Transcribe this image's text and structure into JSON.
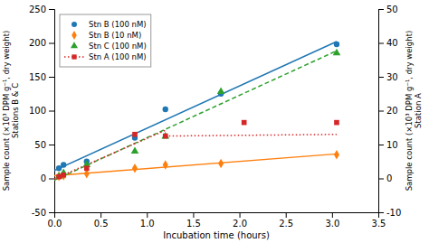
{
  "chart_data": {
    "type": "scatter",
    "x_label": "Incubation time (hours)",
    "y_label": "Sample count (×10³ DPM g⁻¹, dry weight)\nStations B & C",
    "y2_label": "Sample count (×10³ DPM g⁻¹, dry weight)\nStation A",
    "xlim": [
      0,
      3.5
    ],
    "xticks": [
      {
        "value": 0,
        "label": "0.0"
      },
      0.5,
      {
        "value": 1,
        "label": "1.0"
      },
      1.5,
      {
        "value": 2,
        "label": "2.0"
      },
      2.5,
      {
        "value": 3,
        "label": "3.0"
      },
      3.5
    ],
    "ylim": [
      -50,
      250
    ],
    "yticks": [
      -50,
      0,
      50,
      100,
      150,
      200,
      250
    ],
    "y2lim": [
      -10,
      50
    ],
    "y2ticks": [
      -10,
      0,
      10,
      20,
      30,
      40,
      50
    ],
    "grid": false,
    "legend": "upper left",
    "series": [
      {
        "name": "Stn B (100 nM)",
        "type": "scatter",
        "marker": "circle",
        "color": "#1f77b4",
        "x": [
          0.05,
          0.1,
          0.35,
          0.87,
          1.2,
          1.8,
          3.05
        ],
        "values": [
          15,
          20,
          25,
          60,
          102,
          125,
          198
        ]
      },
      {
        "name": "Stn B (10 nM)",
        "type": "scatter",
        "marker": "diamond",
        "color": "#ff7f0e",
        "x": [
          0.05,
          0.1,
          0.35,
          0.87,
          1.2,
          1.8,
          3.05
        ],
        "values": [
          3,
          4,
          7,
          15,
          20,
          22,
          35
        ]
      },
      {
        "name": "Stn C (100 nM)",
        "type": "scatter",
        "marker": "triangle",
        "color": "#2ca02c",
        "x": [
          0.05,
          0.1,
          0.35,
          0.87,
          1.2,
          1.8,
          3.05
        ],
        "values": [
          3,
          8,
          20,
          40,
          62,
          128,
          185
        ]
      },
      {
        "name": "Stn A (100 nM)",
        "type": "scatter",
        "marker": "square",
        "line_style": "dotted",
        "color": "#d62728",
        "axis": "y2",
        "x": [
          0.05,
          0.1,
          0.35,
          0.87,
          1.2,
          2.05,
          3.05
        ],
        "values": [
          0.5,
          1.0,
          3.0,
          13.0,
          12.5,
          16.5,
          16.5
        ]
      },
      {
        "type": "line",
        "line_style": "solid",
        "color": "#1f77b4",
        "x": [
          0,
          3.05
        ],
        "values": [
          11.724,
          202.012
        ]
      },
      {
        "type": "line",
        "line_style": "dashed",
        "color": "#2ca02c",
        "x": [
          0,
          3.05
        ],
        "values": [
          -2.682,
          188.363
        ]
      },
      {
        "type": "line",
        "line_style": "solid",
        "color": "#ff7f0e",
        "x": [
          0,
          3.05
        ],
        "values": [
          3.946,
          36.164
        ]
      },
      {
        "type": "line",
        "line_style": "dotted",
        "color": "#d62728",
        "axis": "y2",
        "x": [
          0,
          1.2
        ],
        "values": [
          -0.134,
          14.187
        ]
      },
      {
        "type": "line",
        "line_style": "dotted",
        "color": "#d62728",
        "axis": "y2",
        "x": [
          1.2,
          3.05
        ],
        "values": [
          12.5,
          13.0
        ]
      }
    ]
  }
}
